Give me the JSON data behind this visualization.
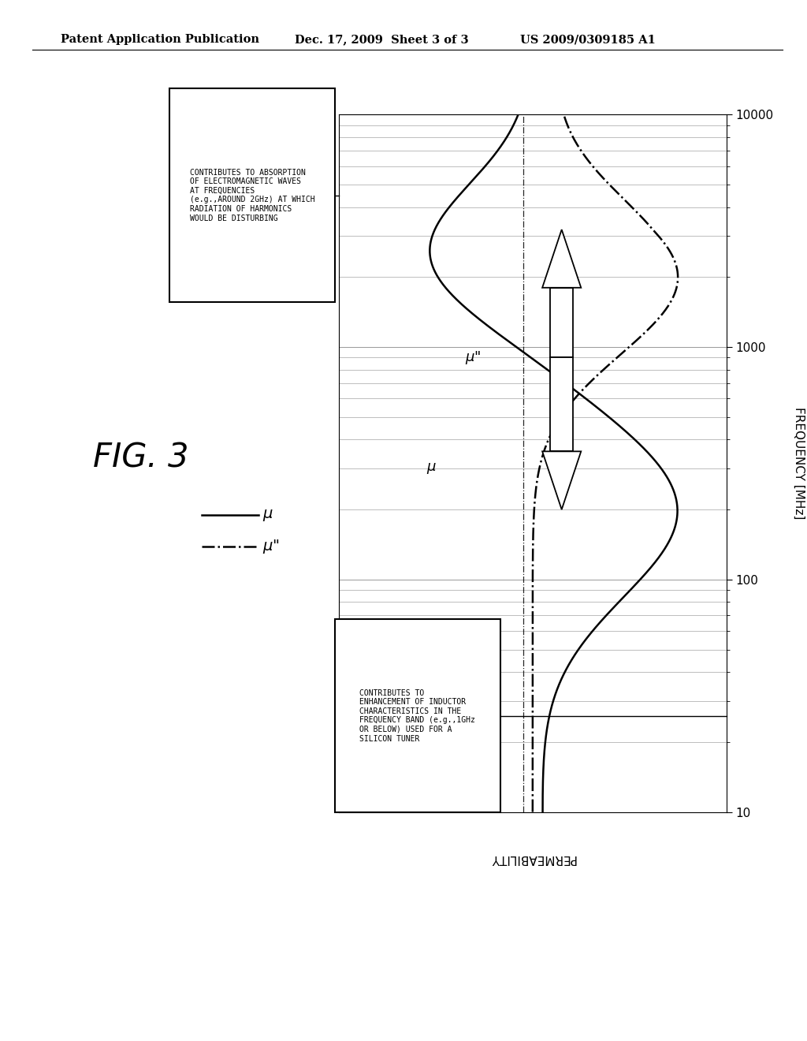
{
  "header_left": "Patent Application Publication",
  "header_mid": "Dec. 17, 2009  Sheet 3 of 3",
  "header_right": "US 2009/0309185 A1",
  "fig_label": "FIG. 3",
  "ylabel_right": "FREQUENCY [MHz]",
  "xlabel_bottom": "PERMEABILITY",
  "box1_text": "CONTRIBUTES TO ABSORPTION\nOF ELECTROMAGNETIC WAVES\nAT FREQUENCIES\n(e.g.,AROUND 2GHz) AT WHICH\nRADIATION OF HARMONICS\nWOULD BE DISTURBING",
  "box2_text": "CONTRIBUTES TO\nENHANCEMENT OF INDUCTOR\nCHARACTERISTICS IN THE\nFREQUENCY BAND (e.g.,1GHz\nOR BELOW) USED FOR A\nSILICON TUNER",
  "legend_mu": "μ",
  "legend_mu2": "μ\"",
  "background_color": "#ffffff",
  "grid_color": "#999999",
  "line_color": "#000000",
  "freq_ticks": [
    10,
    100,
    1000,
    10000
  ],
  "freq_tick_labels": [
    "10",
    "100",
    "1000",
    "10000"
  ]
}
